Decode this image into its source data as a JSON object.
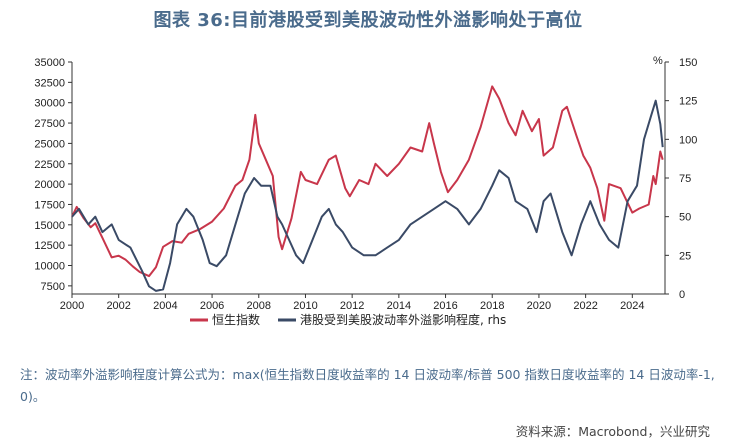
{
  "title": "图表 36:目前港股受到美股波动性外溢影响处于高位",
  "note": "注：波动率外溢影响程度计算公式为：max(恒生指数日度收益率的 14 日波动率/标普 500 指数日度收益率的 14 日波动率-1, 0)。",
  "source": "资料来源：Macrobond，兴业研究",
  "chart_data": {
    "type": "line",
    "title": "",
    "x_ticks": [
      "2000",
      "2002",
      "2004",
      "2006",
      "2008",
      "2010",
      "2012",
      "2014",
      "2016",
      "2018",
      "2020",
      "2022",
      "2024"
    ],
    "x_range": [
      2000,
      2025.4
    ],
    "y_left": {
      "label": "",
      "range": [
        6500,
        35000
      ],
      "ticks": [
        7500,
        10000,
        12500,
        15000,
        17500,
        20000,
        22500,
        25000,
        27500,
        30000,
        32500,
        35000
      ],
      "tick_labels": [
        "7500",
        "10000",
        "12500",
        "15000",
        "17500",
        "20000",
        "22500",
        "25000",
        "27500",
        "30000",
        "32500",
        "35000"
      ]
    },
    "y_right": {
      "label": "%",
      "range": [
        0,
        150
      ],
      "ticks": [
        0,
        25,
        50,
        75,
        100,
        125,
        150
      ],
      "tick_labels": [
        "0",
        "25",
        "50",
        "75",
        "100",
        "125",
        "150"
      ]
    },
    "legend_position": "bottom",
    "series": [
      {
        "name": "恒生指数",
        "color": "#c8364b",
        "axis": "left",
        "x": [
          2000,
          2000.2,
          2000.5,
          2000.8,
          2001,
          2001.3,
          2001.7,
          2002,
          2002.3,
          2002.6,
          2002.9,
          2003.3,
          2003.6,
          2003.9,
          2004.3,
          2004.7,
          2005,
          2005.5,
          2006,
          2006.5,
          2007,
          2007.3,
          2007.6,
          2007.85,
          2008,
          2008.3,
          2008.6,
          2008.85,
          2009,
          2009.4,
          2009.8,
          2010,
          2010.5,
          2011,
          2011.3,
          2011.7,
          2011.9,
          2012.3,
          2012.7,
          2013,
          2013.5,
          2014,
          2014.5,
          2015,
          2015.3,
          2015.5,
          2015.8,
          2016.1,
          2016.5,
          2017,
          2017.5,
          2018,
          2018.3,
          2018.7,
          2019,
          2019.3,
          2019.7,
          2020,
          2020.2,
          2020.6,
          2021,
          2021.2,
          2021.6,
          2021.9,
          2022.2,
          2022.5,
          2022.8,
          2023,
          2023.5,
          2024,
          2024.3,
          2024.7,
          2024.9,
          2025,
          2025.2,
          2025.3
        ],
        "y": [
          16000,
          17200,
          15800,
          14700,
          15200,
          13400,
          11000,
          11200,
          10700,
          9900,
          9200,
          8700,
          9800,
          12300,
          13000,
          12800,
          13900,
          14500,
          15400,
          17000,
          19800,
          20500,
          23000,
          28500,
          25000,
          23000,
          21000,
          13500,
          12000,
          15800,
          21500,
          20500,
          20000,
          23000,
          23500,
          19500,
          18500,
          20500,
          20000,
          22500,
          21000,
          22500,
          24500,
          24000,
          27500,
          25000,
          21500,
          19000,
          20500,
          23000,
          27000,
          32000,
          30500,
          27500,
          26000,
          29000,
          26500,
          28000,
          23500,
          24500,
          29000,
          29500,
          26000,
          23500,
          22000,
          19500,
          15500,
          20000,
          19500,
          16500,
          17000,
          17500,
          21000,
          20000,
          24000,
          23000
        ]
      },
      {
        "name": "港股受到美股波动率外溢影响程度, rhs",
        "color": "#3a4a66",
        "axis": "right",
        "x": [
          2000,
          2000.3,
          2000.7,
          2001,
          2001.3,
          2001.7,
          2002,
          2002.5,
          2003,
          2003.3,
          2003.6,
          2003.9,
          2004.2,
          2004.5,
          2004.9,
          2005.2,
          2005.6,
          2005.9,
          2006.2,
          2006.6,
          2007,
          2007.4,
          2007.8,
          2008.1,
          2008.5,
          2008.8,
          2009,
          2009.3,
          2009.6,
          2009.9,
          2010.3,
          2010.7,
          2011,
          2011.3,
          2011.6,
          2012,
          2012.5,
          2013,
          2013.5,
          2014,
          2014.5,
          2015,
          2015.5,
          2016,
          2016.5,
          2017,
          2017.5,
          2018,
          2018.3,
          2018.7,
          2019,
          2019.5,
          2019.9,
          2020.2,
          2020.5,
          2021,
          2021.4,
          2021.8,
          2022.2,
          2022.6,
          2023,
          2023.4,
          2023.8,
          2024.2,
          2024.5,
          2024.8,
          2025,
          2025.2,
          2025.3
        ],
        "y": [
          50,
          55,
          45,
          50,
          40,
          45,
          35,
          30,
          15,
          5,
          2,
          3,
          20,
          45,
          55,
          50,
          35,
          20,
          18,
          25,
          45,
          65,
          75,
          70,
          70,
          50,
          45,
          35,
          25,
          20,
          35,
          50,
          55,
          45,
          40,
          30,
          25,
          25,
          30,
          35,
          45,
          50,
          55,
          60,
          55,
          45,
          55,
          70,
          80,
          75,
          60,
          55,
          40,
          60,
          65,
          40,
          25,
          45,
          60,
          45,
          35,
          30,
          60,
          70,
          100,
          115,
          125,
          110,
          95
        ]
      }
    ]
  }
}
